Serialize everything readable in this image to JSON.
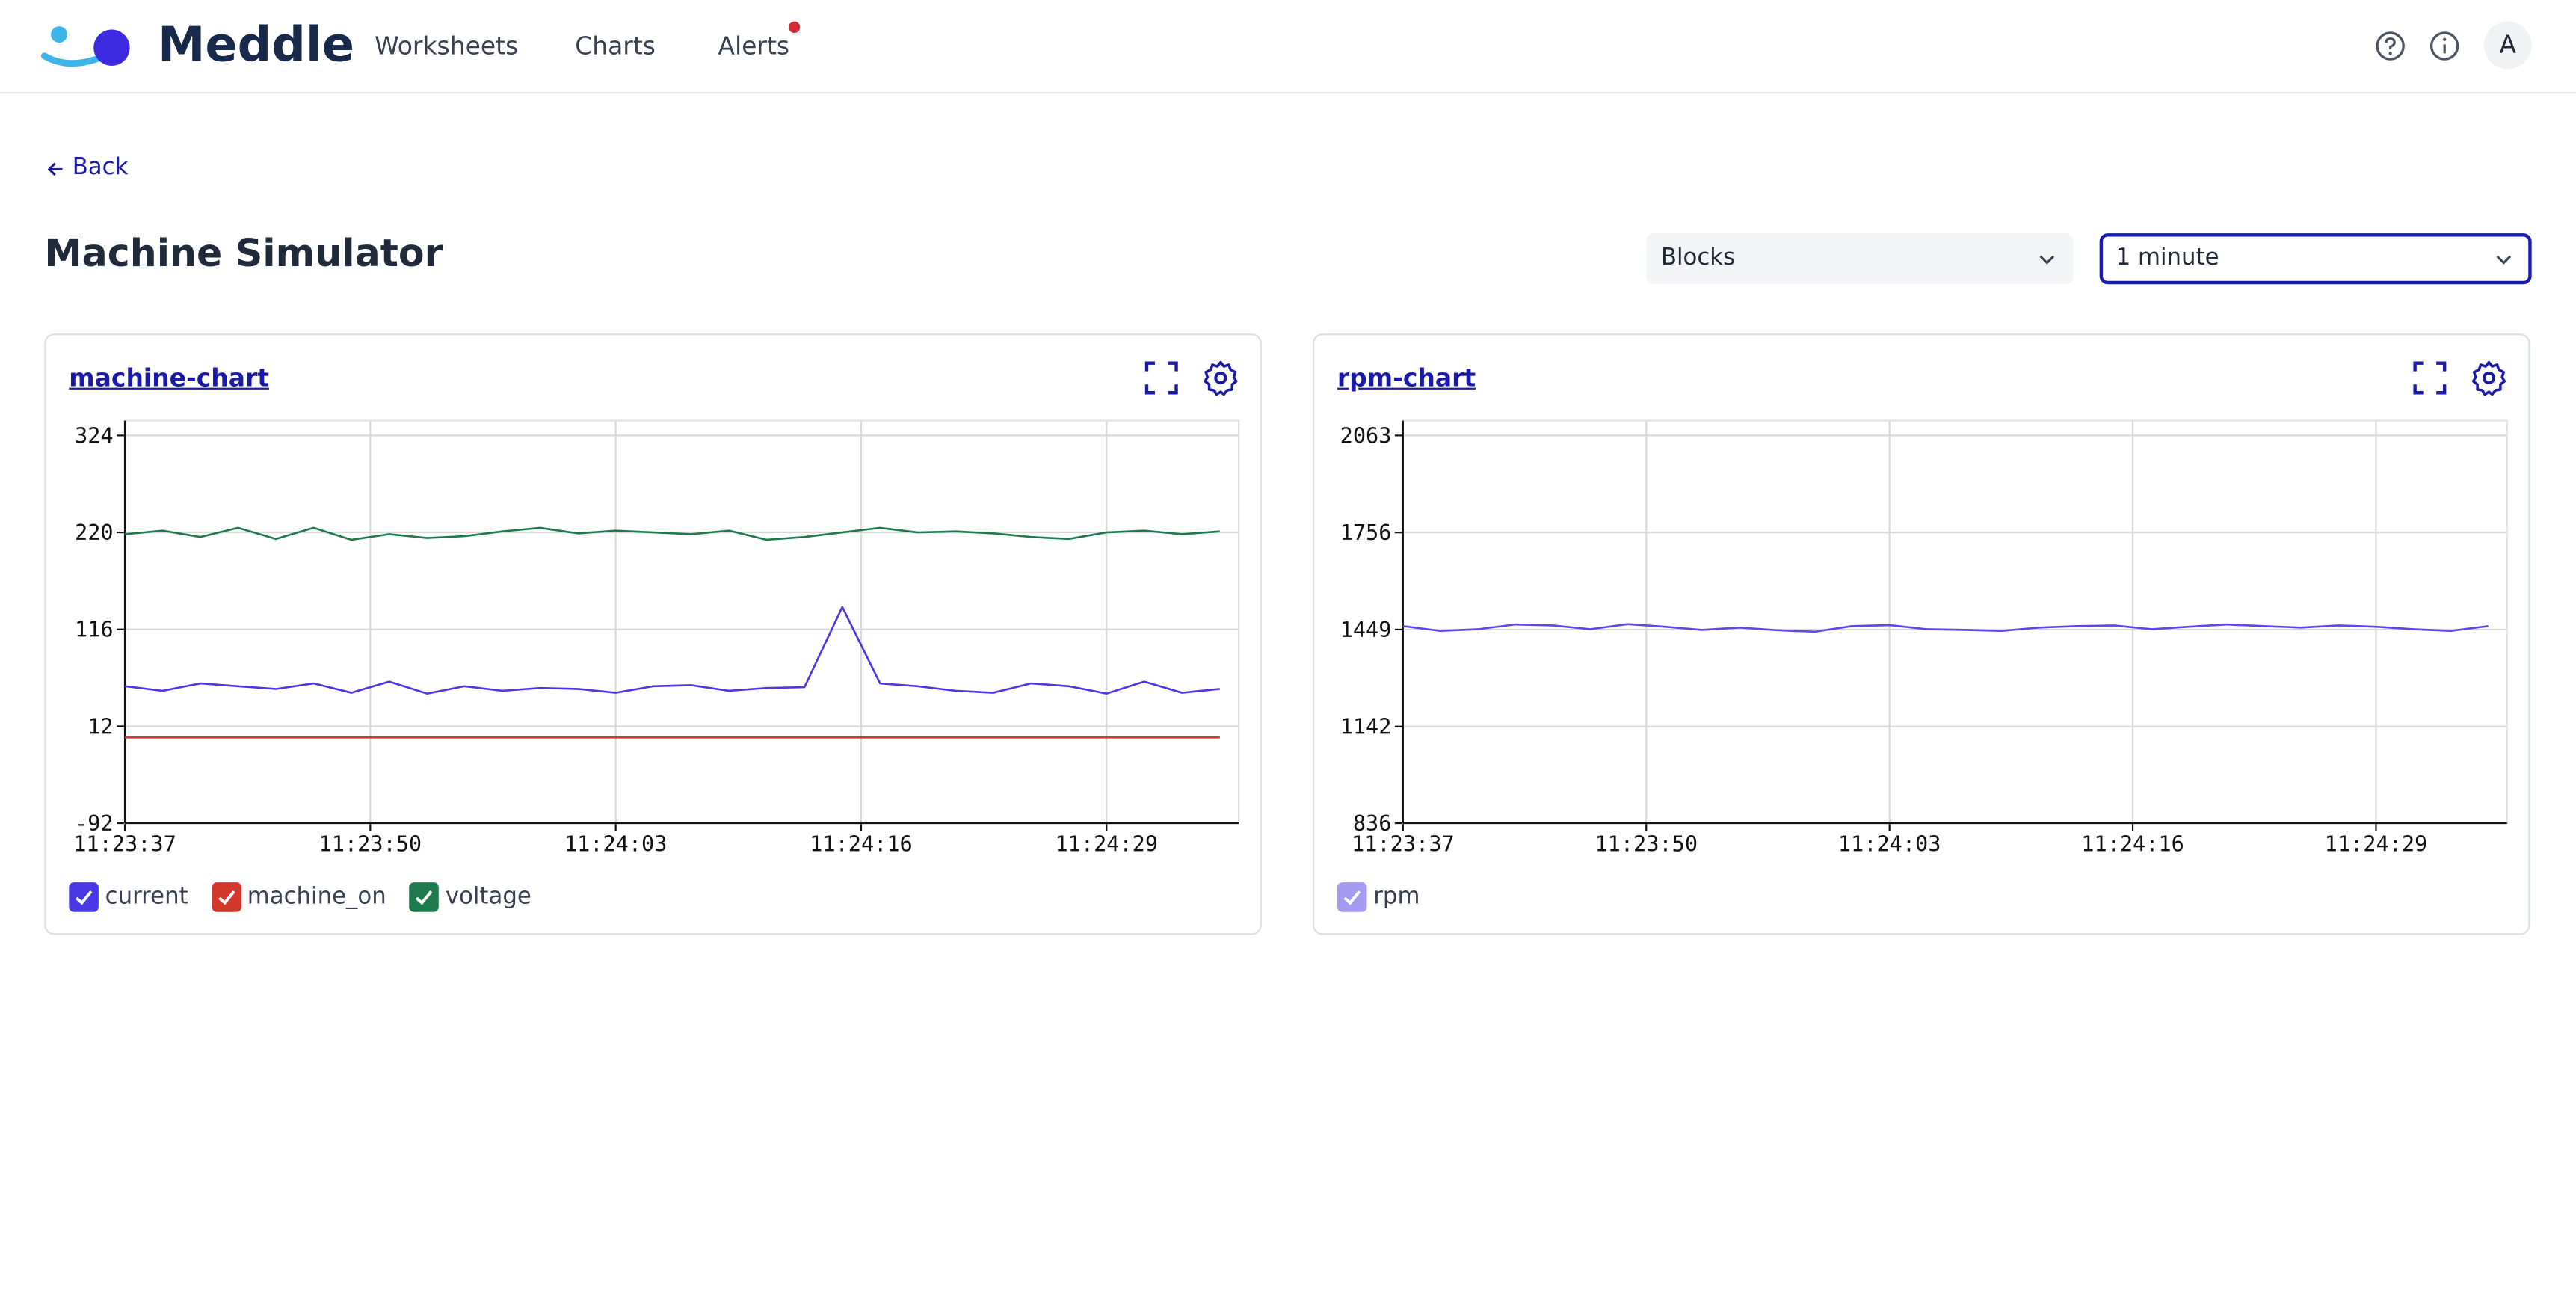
{
  "header": {
    "brand": "Meddle",
    "nav": [
      "Worksheets",
      "Charts",
      "Alerts"
    ],
    "avatar": "A"
  },
  "back": "Back",
  "title": "Machine Simulator",
  "controls": {
    "view": "Blocks",
    "range": "1 minute"
  },
  "chart_data": [
    {
      "type": "line",
      "title": "machine-chart",
      "x": [
        "11:23:37",
        "11:23:39",
        "11:23:41",
        "11:23:43",
        "11:23:45",
        "11:23:47",
        "11:23:49",
        "11:23:51",
        "11:23:53",
        "11:23:55",
        "11:23:57",
        "11:23:59",
        "11:24:01",
        "11:24:03",
        "11:24:05",
        "11:24:07",
        "11:24:09",
        "11:24:11",
        "11:24:13",
        "11:24:15",
        "11:24:17",
        "11:24:19",
        "11:24:21",
        "11:24:23",
        "11:24:25",
        "11:24:27",
        "11:24:29",
        "11:24:31",
        "11:24:33",
        "11:24:35"
      ],
      "series": [
        {
          "name": "current",
          "color": "#4a37e6",
          "values": [
            55,
            50,
            58,
            55,
            52,
            58,
            48,
            60,
            47,
            55,
            50,
            53,
            52,
            48,
            55,
            56,
            50,
            53,
            54,
            140,
            58,
            55,
            50,
            48,
            58,
            55,
            47,
            60,
            48,
            52
          ]
        },
        {
          "name": "machine_on",
          "color": "#d2372c",
          "values": [
            0,
            0,
            0,
            0,
            0,
            0,
            0,
            0,
            0,
            0,
            0,
            0,
            0,
            0,
            0,
            0,
            0,
            0,
            0,
            0,
            0,
            0,
            0,
            0,
            0,
            0,
            0,
            0,
            0,
            0
          ]
        },
        {
          "name": "voltage",
          "color": "#1d7a4c",
          "values": [
            218,
            222,
            215,
            225,
            213,
            225,
            212,
            218,
            214,
            216,
            221,
            225,
            219,
            222,
            220,
            218,
            222,
            212,
            215,
            220,
            225,
            220,
            221,
            219,
            215,
            213,
            220,
            222,
            218,
            221
          ]
        }
      ],
      "xlim": [
        "11:23:37",
        "11:24:36"
      ],
      "xticks": [
        "11:23:37",
        "11:23:50",
        "11:24:03",
        "11:24:16",
        "11:24:29"
      ],
      "ylim": [
        -92,
        324
      ],
      "yticks": [
        -92,
        12,
        116,
        220,
        324
      ],
      "grid": true
    },
    {
      "type": "line",
      "title": "rpm-chart",
      "x": [
        "11:23:37",
        "11:23:39",
        "11:23:41",
        "11:23:43",
        "11:23:45",
        "11:23:47",
        "11:23:49",
        "11:23:51",
        "11:23:53",
        "11:23:55",
        "11:23:57",
        "11:23:59",
        "11:24:01",
        "11:24:03",
        "11:24:05",
        "11:24:07",
        "11:24:09",
        "11:24:11",
        "11:24:13",
        "11:24:15",
        "11:24:17",
        "11:24:19",
        "11:24:21",
        "11:24:23",
        "11:24:25",
        "11:24:27",
        "11:24:29",
        "11:24:31",
        "11:24:33",
        "11:24:35"
      ],
      "series": [
        {
          "name": "rpm",
          "color": "#5a48e8",
          "values": [
            1460,
            1445,
            1450,
            1465,
            1462,
            1450,
            1466,
            1458,
            1448,
            1455,
            1447,
            1442,
            1460,
            1463,
            1450,
            1448,
            1445,
            1455,
            1460,
            1462,
            1450,
            1458,
            1465,
            1460,
            1455,
            1462,
            1458,
            1450,
            1445,
            1460
          ]
        }
      ],
      "xlim": [
        "11:23:37",
        "11:24:36"
      ],
      "xticks": [
        "11:23:37",
        "11:23:50",
        "11:24:03",
        "11:24:16",
        "11:24:29"
      ],
      "ylim": [
        836,
        2063
      ],
      "yticks": [
        836,
        1142,
        1449,
        1756,
        2063
      ],
      "grid": true
    }
  ]
}
